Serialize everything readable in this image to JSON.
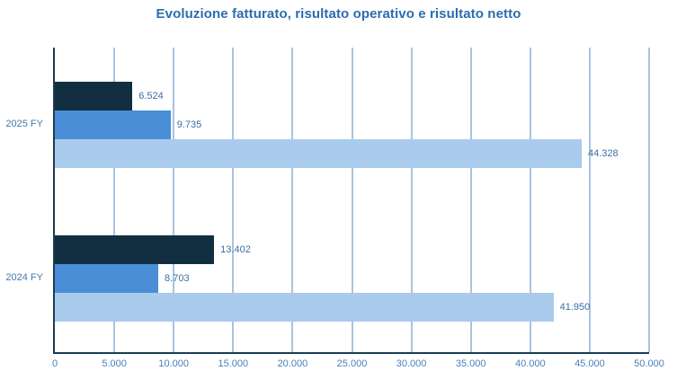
{
  "chart_data": {
    "type": "bar",
    "orientation": "horizontal",
    "title": "Evoluzione fatturato, risultato operativo e risultato netto",
    "categories": [
      "2025 FY",
      "2024 FY"
    ],
    "series": [
      {
        "name": "dark-navy",
        "color": "#112F41",
        "values": [
          6524,
          13402
        ],
        "value_labels": [
          "6.524",
          "13.402"
        ]
      },
      {
        "name": "medium-blue",
        "color": "#4A8ED8",
        "values": [
          9735,
          8703
        ],
        "value_labels": [
          "9.735",
          "8.703"
        ]
      },
      {
        "name": "light-blue",
        "color": "#A9CBEC",
        "values": [
          44328,
          41950
        ],
        "value_labels": [
          "44.328",
          "41.950"
        ]
      }
    ],
    "x_axis": {
      "min": 0,
      "max": 50000,
      "tick_step": 5000,
      "tick_labels": [
        "0",
        "5.000",
        "10.000",
        "15.000",
        "20.000",
        "25.000",
        "30.000",
        "35.000",
        "40.000",
        "45.000",
        "50.000"
      ]
    },
    "grid": true,
    "legend": false
  },
  "colors": {
    "background": "#FFFFFF",
    "title": "#2A6DAE",
    "axis_line": "#1B3C54",
    "gridline": "#A7C4E2",
    "tick_label": "#4A7FBA",
    "category_label": "#4678AD",
    "value_label": "#3A6FA5"
  }
}
